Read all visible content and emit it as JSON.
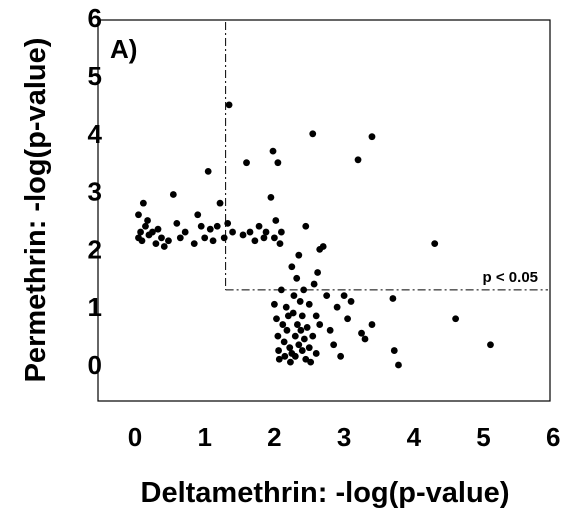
{
  "chart_data": {
    "type": "scatter",
    "panel_label": "A)",
    "xlabel": "Deltamethrin: -log(p-value)",
    "ylabel": "Permethrin: -log(p-value)",
    "xlim": [
      0,
      6
    ],
    "ylim": [
      0,
      6
    ],
    "xticks": [
      "0",
      "1",
      "2",
      "3",
      "4",
      "5",
      "6"
    ],
    "yticks": [
      "0",
      "1",
      "2",
      "3",
      "4",
      "5",
      "6"
    ],
    "grid": false,
    "threshold": {
      "x": 1.3,
      "y": 1.3,
      "label": "p < 0.05",
      "style": "dash-dot"
    },
    "point_color": "#000000",
    "points": [
      [
        0.05,
        2.2
      ],
      [
        0.05,
        2.6
      ],
      [
        0.08,
        2.3
      ],
      [
        0.1,
        2.15
      ],
      [
        0.12,
        2.8
      ],
      [
        0.15,
        2.4
      ],
      [
        0.18,
        2.5
      ],
      [
        0.2,
        2.25
      ],
      [
        0.25,
        2.3
      ],
      [
        0.3,
        2.1
      ],
      [
        0.33,
        2.35
      ],
      [
        0.38,
        2.2
      ],
      [
        0.42,
        2.05
      ],
      [
        0.48,
        2.15
      ],
      [
        0.55,
        2.95
      ],
      [
        0.6,
        2.45
      ],
      [
        0.65,
        2.2
      ],
      [
        0.72,
        2.3
      ],
      [
        0.85,
        2.1
      ],
      [
        0.9,
        2.6
      ],
      [
        0.95,
        2.4
      ],
      [
        1.0,
        2.2
      ],
      [
        1.05,
        3.35
      ],
      [
        1.08,
        2.35
      ],
      [
        1.12,
        2.15
      ],
      [
        1.18,
        2.4
      ],
      [
        1.22,
        2.8
      ],
      [
        1.28,
        2.2
      ],
      [
        1.33,
        2.45
      ],
      [
        1.35,
        4.5
      ],
      [
        1.4,
        2.3
      ],
      [
        1.55,
        2.25
      ],
      [
        1.6,
        3.5
      ],
      [
        1.65,
        2.3
      ],
      [
        1.72,
        2.15
      ],
      [
        1.78,
        2.4
      ],
      [
        1.85,
        2.2
      ],
      [
        1.88,
        2.3
      ],
      [
        1.95,
        2.9
      ],
      [
        1.98,
        3.7
      ],
      [
        2.0,
        2.2
      ],
      [
        2.02,
        2.5
      ],
      [
        2.05,
        3.5
      ],
      [
        2.08,
        2.1
      ],
      [
        2.1,
        2.3
      ],
      [
        2.0,
        1.05
      ],
      [
        2.03,
        0.8
      ],
      [
        2.05,
        0.5
      ],
      [
        2.06,
        0.25
      ],
      [
        2.07,
        0.1
      ],
      [
        2.1,
        1.3
      ],
      [
        2.12,
        0.7
      ],
      [
        2.14,
        0.4
      ],
      [
        2.15,
        0.15
      ],
      [
        2.17,
        1.0
      ],
      [
        2.18,
        0.6
      ],
      [
        2.2,
        0.85
      ],
      [
        2.22,
        0.3
      ],
      [
        2.23,
        0.05
      ],
      [
        2.25,
        0.2
      ],
      [
        2.25,
        1.7
      ],
      [
        2.27,
        0.9
      ],
      [
        2.28,
        1.2
      ],
      [
        2.3,
        0.5
      ],
      [
        2.3,
        0.15
      ],
      [
        2.32,
        1.5
      ],
      [
        2.33,
        0.7
      ],
      [
        2.35,
        0.35
      ],
      [
        2.35,
        1.9
      ],
      [
        2.37,
        1.1
      ],
      [
        2.38,
        0.6
      ],
      [
        2.4,
        0.25
      ],
      [
        2.4,
        0.85
      ],
      [
        2.42,
        1.3
      ],
      [
        2.43,
        0.45
      ],
      [
        2.45,
        0.1
      ],
      [
        2.45,
        2.4
      ],
      [
        2.47,
        0.65
      ],
      [
        2.5,
        0.3
      ],
      [
        2.5,
        1.05
      ],
      [
        2.52,
        0.05
      ],
      [
        2.55,
        4.0
      ],
      [
        2.55,
        0.5
      ],
      [
        2.57,
        1.4
      ],
      [
        2.6,
        0.85
      ],
      [
        2.6,
        0.2
      ],
      [
        2.62,
        1.6
      ],
      [
        2.65,
        2.0
      ],
      [
        2.65,
        0.7
      ],
      [
        2.7,
        2.05
      ],
      [
        2.75,
        1.2
      ],
      [
        2.8,
        0.6
      ],
      [
        2.85,
        0.35
      ],
      [
        2.9,
        1.0
      ],
      [
        2.95,
        0.15
      ],
      [
        3.0,
        1.2
      ],
      [
        3.05,
        0.8
      ],
      [
        3.1,
        1.1
      ],
      [
        3.2,
        3.55
      ],
      [
        3.25,
        0.55
      ],
      [
        3.3,
        0.45
      ],
      [
        3.4,
        3.95
      ],
      [
        3.4,
        0.7
      ],
      [
        3.7,
        1.15
      ],
      [
        3.72,
        0.25
      ],
      [
        3.78,
        0.0
      ],
      [
        4.3,
        2.1
      ],
      [
        4.6,
        0.8
      ],
      [
        5.1,
        0.35
      ]
    ]
  }
}
